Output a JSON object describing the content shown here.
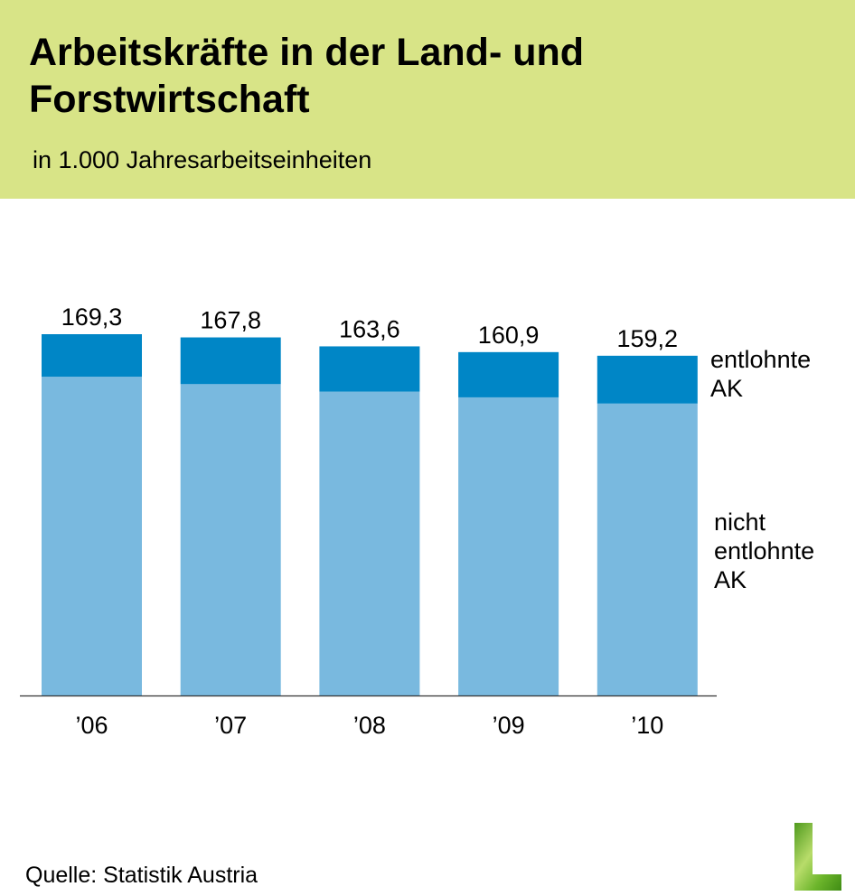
{
  "header": {
    "title": "Arbeitskräfte in der Land- und Forstwirtschaft",
    "subtitle": "in 1.000 Jahresarbeitseinheiten"
  },
  "chart_data": {
    "type": "bar",
    "stacked": true,
    "title": "Arbeitskräfte in der Land- und Forstwirtschaft",
    "subtitle": "in 1.000 Jahresarbeitseinheiten",
    "categories": [
      "’06",
      "’07",
      "’08",
      "’09",
      "’10"
    ],
    "totals": [
      "169,3",
      "167,8",
      "163,6",
      "160,9",
      "159,2"
    ],
    "total_values": [
      169.3,
      167.8,
      163.6,
      160.9,
      159.2
    ],
    "series": [
      {
        "name": "nicht entlohnte AK",
        "values": [
          149.4,
          145.9,
          142.4,
          139.7,
          136.8
        ],
        "color": "#79b9df"
      },
      {
        "name": "entlohnte AK",
        "values": [
          19.9,
          21.9,
          21.2,
          21.2,
          22.4
        ],
        "color": "#0086c6"
      }
    ],
    "series_labels": {
      "entlohnte": [
        "entlohnte",
        "AK"
      ],
      "nicht_entlohnte": [
        "nicht",
        "entlohnte",
        "AK"
      ]
    },
    "xlabel": "",
    "ylabel": "",
    "ylim": [
      0,
      169.3
    ],
    "grid": false,
    "legend": "right"
  },
  "footer": {
    "source": "Quelle: Statistik Austria"
  },
  "colors": {
    "header_bg": "#d8e487",
    "dark": "#0086c6",
    "light": "#79b9df"
  }
}
